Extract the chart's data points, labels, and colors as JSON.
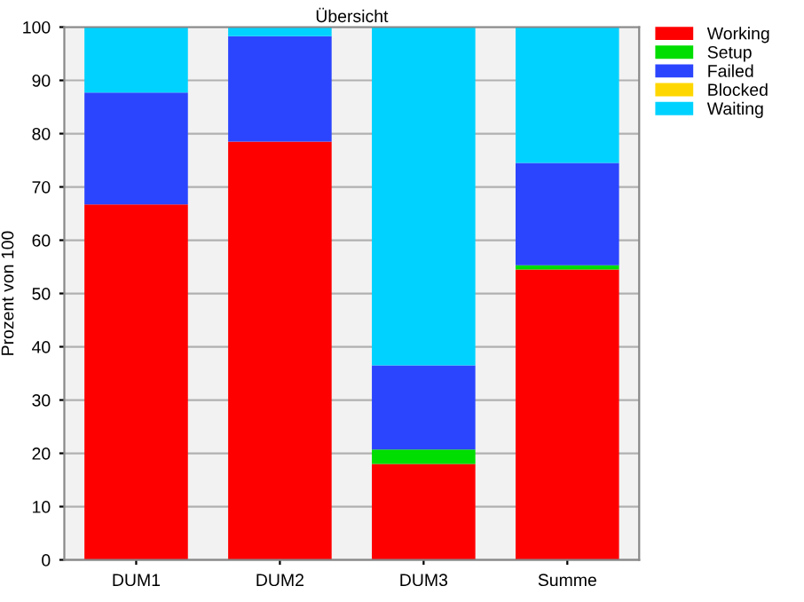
{
  "chart_data": {
    "type": "bar",
    "title": "Übersicht",
    "ylabel": "Prozent von 100",
    "stacked": true,
    "categories": [
      "DUM1",
      "DUM2",
      "DUM3",
      "Summe"
    ],
    "series": [
      {
        "name": "Working",
        "color": "#ff0000",
        "values": [
          66.7,
          78.5,
          18,
          54.5
        ]
      },
      {
        "name": "Setup",
        "color": "#00dd00",
        "values": [
          0,
          0,
          2.7,
          0.8
        ]
      },
      {
        "name": "Failed",
        "color": "#2b45ff",
        "values": [
          21,
          19.8,
          15.8,
          19.2
        ]
      },
      {
        "name": "Blocked",
        "color": "#ffd700",
        "values": [
          0,
          0,
          0,
          0
        ]
      },
      {
        "name": "Waiting",
        "color": "#00d2ff",
        "values": [
          12.3,
          1.7,
          63.5,
          25.5
        ]
      }
    ],
    "ylim": [
      0,
      100
    ],
    "yticks": [
      0,
      10,
      20,
      30,
      40,
      50,
      60,
      70,
      80,
      90,
      100
    ],
    "grid": "y",
    "legend": "top right"
  }
}
